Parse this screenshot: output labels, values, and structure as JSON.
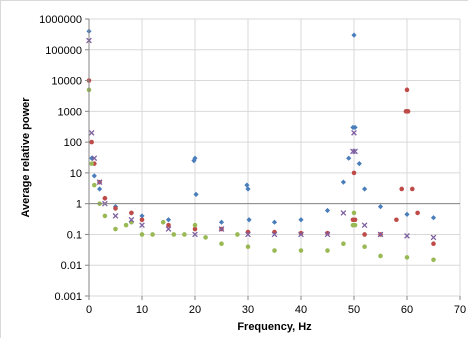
{
  "chart_data": {
    "type": "scatter",
    "title": "",
    "xlabel": "Frequency, Hz",
    "ylabel": "Average relative power",
    "y_scale": "log",
    "xlim": [
      0,
      70
    ],
    "ylim": [
      0.001,
      1000000
    ],
    "grid": true,
    "legend": "none",
    "x_ticks": [
      0,
      10,
      20,
      30,
      40,
      50,
      60,
      70
    ],
    "x_tick_labels": [
      "0",
      "10",
      "20",
      "30",
      "40",
      "50",
      "60",
      "70"
    ],
    "y_ticks": [
      0.001,
      0.01,
      0.1,
      1,
      10,
      100,
      1000,
      10000,
      100000,
      1000000
    ],
    "y_tick_labels": [
      "0.001",
      "0.01",
      "0.1",
      "1",
      "10",
      "100",
      "1000",
      "10000",
      "100000",
      "1000000"
    ],
    "series": [
      {
        "color": "#4a7ebb",
        "marker": "diamond",
        "x": [
          0,
          0.5,
          1,
          2,
          3,
          5,
          8,
          10,
          15,
          19.8,
          20,
          20.2,
          25,
          29.8,
          30,
          30.2,
          35,
          40,
          45,
          48,
          49,
          49.8,
          50,
          50.2,
          51,
          52,
          55,
          60,
          65
        ],
        "y": [
          400000,
          30,
          8,
          3,
          1.5,
          0.8,
          0.5,
          0.4,
          0.3,
          25,
          30,
          2,
          0.25,
          4,
          3,
          0.3,
          0.25,
          0.3,
          0.6,
          5,
          30,
          300,
          300000,
          300,
          20,
          3,
          0.8,
          0.45,
          0.35
        ]
      },
      {
        "color": "#be4b48",
        "marker": "circle",
        "x": [
          0,
          0.5,
          1,
          2,
          3,
          5,
          8,
          10,
          15,
          20,
          25,
          30,
          35,
          40,
          45,
          49.8,
          50,
          50.2,
          52,
          55,
          58,
          59,
          59.8,
          60,
          60.2,
          61,
          62,
          65
        ],
        "y": [
          10000,
          100,
          20,
          5,
          1.5,
          0.7,
          0.5,
          0.3,
          0.2,
          0.15,
          0.15,
          0.12,
          0.12,
          0.11,
          0.11,
          0.3,
          10,
          0.3,
          0.1,
          0.1,
          0.3,
          3,
          1000,
          5000,
          1000,
          3,
          0.5,
          0.05
        ]
      },
      {
        "color": "#98b954",
        "marker": "circle",
        "x": [
          0,
          0.5,
          1,
          2,
          3,
          5,
          7,
          8,
          10,
          12,
          14,
          16,
          18,
          20,
          22,
          25,
          28,
          30,
          35,
          40,
          45,
          48,
          49.8,
          50,
          50.2,
          52,
          55,
          60,
          65
        ],
        "y": [
          5000,
          20,
          4,
          1,
          0.4,
          0.15,
          0.2,
          0.25,
          0.1,
          0.1,
          0.25,
          0.1,
          0.1,
          0.2,
          0.08,
          0.05,
          0.1,
          0.04,
          0.03,
          0.03,
          0.03,
          0.05,
          0.2,
          0.5,
          0.2,
          0.04,
          0.02,
          0.018,
          0.015
        ]
      },
      {
        "color": "#7d5fa0",
        "marker": "x",
        "x": [
          0,
          0.5,
          1,
          2,
          3,
          5,
          8,
          10,
          15,
          20,
          25,
          30,
          35,
          40,
          45,
          48,
          49.8,
          50,
          50.2,
          52,
          55,
          60,
          65
        ],
        "y": [
          200000,
          200,
          30,
          5,
          1,
          0.4,
          0.3,
          0.2,
          0.15,
          0.1,
          0.15,
          0.1,
          0.1,
          0.1,
          0.1,
          0.5,
          50,
          200,
          50,
          0.2,
          0.1,
          0.09,
          0.08
        ]
      }
    ]
  }
}
